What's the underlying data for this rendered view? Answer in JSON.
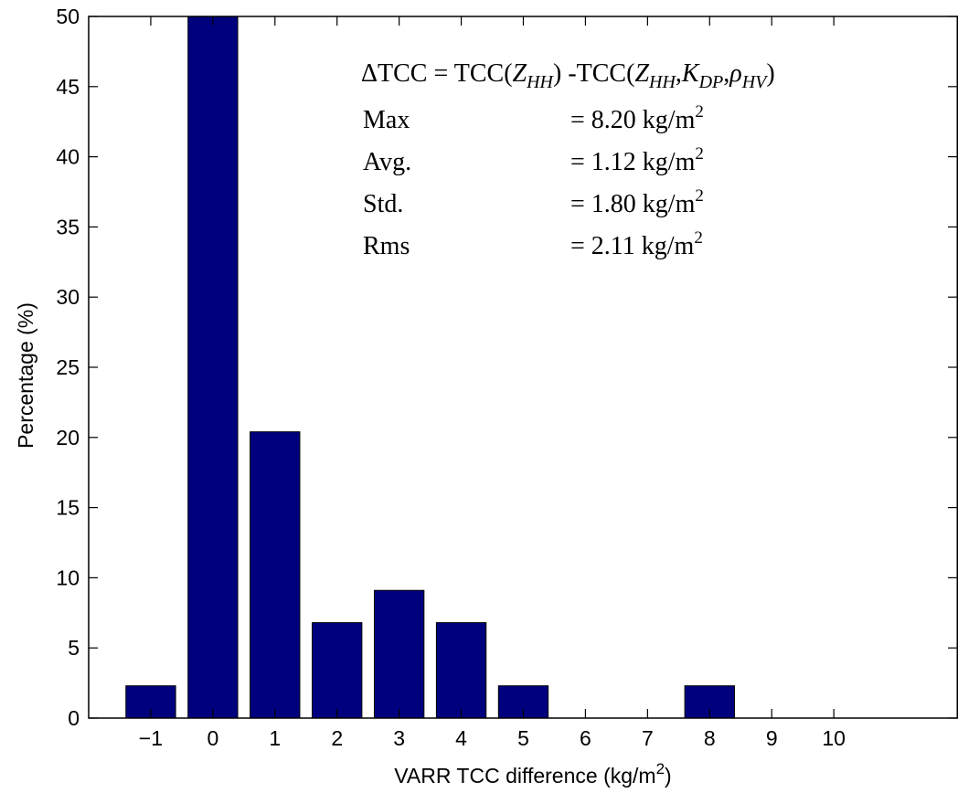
{
  "chart_data": {
    "type": "bar",
    "categories": [
      "-1",
      "0",
      "1",
      "2",
      "3",
      "4",
      "5",
      "6",
      "7",
      "8",
      "9",
      "10"
    ],
    "values": [
      2.3,
      50,
      20.4,
      6.8,
      9.1,
      6.8,
      2.3,
      0,
      0,
      2.3,
      0,
      0
    ],
    "xlim": [
      -2,
      12
    ],
    "ylim": [
      0,
      50
    ],
    "yticks": [
      0,
      5,
      10,
      15,
      20,
      25,
      30,
      35,
      40,
      45,
      50
    ],
    "xticks": [
      -1,
      0,
      1,
      2,
      3,
      4,
      5,
      6,
      7,
      8,
      9,
      10
    ],
    "xtick_labels": [
      "−1",
      "0",
      "1",
      "2",
      "3",
      "4",
      "5",
      "6",
      "7",
      "8",
      "9",
      "10"
    ],
    "xlabel": "VARR TCC difference (kg/m",
    "xlabel_sup": "2",
    "xlabel_end": ")",
    "ylabel": "Percentage (%)",
    "bar_color": "#00007f",
    "grid": false,
    "annotation": {
      "formula": {
        "lhs": "ΔTCC = TCC(",
        "z": "Z",
        "hh": "HH",
        "mid": ") -TCC(",
        "z2": "Z",
        "hh2": "HH",
        "comma1": ",",
        "k": "K",
        "dp": "DP",
        "comma2": ",",
        "rho": "ρ",
        "hv": "HV",
        "close": ")"
      },
      "stats": [
        {
          "label": "Max",
          "value": "= 8.20 kg/m",
          "sup": "2"
        },
        {
          "label": "Avg.",
          "value": "= 1.12 kg/m",
          "sup": "2"
        },
        {
          "label": "Std.",
          "value": "= 1.80 kg/m",
          "sup": "2"
        },
        {
          "label": "Rms",
          "value": "= 2.11 kg/m",
          "sup": "2"
        }
      ]
    }
  }
}
